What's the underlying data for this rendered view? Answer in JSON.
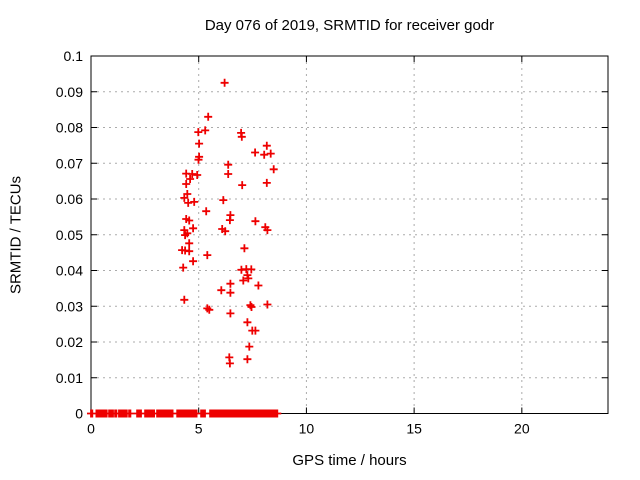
{
  "chart_data": {
    "type": "scatter",
    "title": "Day 076 of 2019, SRMTID for receiver godr",
    "xlabel": "GPS time / hours",
    "ylabel": "SRMTID / TECUs",
    "xlim": [
      0,
      24
    ],
    "ylim": [
      0,
      0.1
    ],
    "xticks": [
      0,
      5,
      10,
      15,
      20
    ],
    "xtick_labels": [
      "0",
      "5",
      "10",
      "15",
      "20"
    ],
    "yticks": [
      0,
      0.01,
      0.02,
      0.03,
      0.04,
      0.05,
      0.06,
      0.07,
      0.08,
      0.09,
      0.1
    ],
    "ytick_labels": [
      "0",
      "0.01",
      "0.02",
      "0.03",
      "0.04",
      "0.05",
      "0.06",
      "0.07",
      "0.08",
      "0.09",
      "0.1"
    ],
    "grid": true,
    "legend": false,
    "marker": {
      "shape": "plus-marker",
      "color": "#ee0000",
      "size": 4,
      "stroke": 1.8
    },
    "colors": {
      "axis": "#000000",
      "grid": "#ababab",
      "background": "#ffffff",
      "text": "#000000"
    },
    "series": [
      {
        "name": "SRMTID",
        "points": [
          [
            6.2,
            0.0925
          ],
          [
            5.44,
            0.083
          ],
          [
            5.3,
            0.0792
          ],
          [
            4.98,
            0.0787
          ],
          [
            6.97,
            0.0785
          ],
          [
            7.0,
            0.0774
          ],
          [
            5.02,
            0.0755
          ],
          [
            8.16,
            0.0749
          ],
          [
            7.62,
            0.073
          ],
          [
            8.04,
            0.0724
          ],
          [
            8.34,
            0.0727
          ],
          [
            5.02,
            0.0718
          ],
          [
            4.99,
            0.071
          ],
          [
            6.37,
            0.0696
          ],
          [
            8.48,
            0.0683
          ],
          [
            6.37,
            0.067
          ],
          [
            4.42,
            0.0671
          ],
          [
            4.7,
            0.067
          ],
          [
            4.93,
            0.0667
          ],
          [
            4.6,
            0.0656
          ],
          [
            4.42,
            0.0642
          ],
          [
            8.16,
            0.0645
          ],
          [
            7.02,
            0.0639
          ],
          [
            4.47,
            0.0614
          ],
          [
            4.33,
            0.0603
          ],
          [
            6.14,
            0.0597
          ],
          [
            4.79,
            0.0592
          ],
          [
            4.51,
            0.0589
          ],
          [
            5.35,
            0.0566
          ],
          [
            6.47,
            0.0555
          ],
          [
            6.45,
            0.0541
          ],
          [
            4.42,
            0.0544
          ],
          [
            4.56,
            0.054
          ],
          [
            7.63,
            0.0538
          ],
          [
            8.09,
            0.0521
          ],
          [
            4.74,
            0.0518
          ],
          [
            8.19,
            0.0513
          ],
          [
            4.33,
            0.0513
          ],
          [
            6.09,
            0.0516
          ],
          [
            6.23,
            0.051
          ],
          [
            4.47,
            0.0504
          ],
          [
            4.37,
            0.0499
          ],
          [
            4.56,
            0.0476
          ],
          [
            7.12,
            0.0462
          ],
          [
            4.23,
            0.0457
          ],
          [
            4.37,
            0.0456
          ],
          [
            4.56,
            0.0454
          ],
          [
            5.4,
            0.0443
          ],
          [
            4.74,
            0.0426
          ],
          [
            4.28,
            0.0408
          ],
          [
            6.98,
            0.0402
          ],
          [
            7.21,
            0.0404
          ],
          [
            7.44,
            0.0403
          ],
          [
            7.26,
            0.0387
          ],
          [
            7.3,
            0.0378
          ],
          [
            7.07,
            0.0372
          ],
          [
            6.47,
            0.0363
          ],
          [
            7.77,
            0.0358
          ],
          [
            6.05,
            0.0345
          ],
          [
            6.47,
            0.0338
          ],
          [
            4.33,
            0.0318
          ],
          [
            8.19,
            0.0305
          ],
          [
            7.4,
            0.0303
          ],
          [
            7.45,
            0.0298
          ],
          [
            5.4,
            0.0294
          ],
          [
            5.49,
            0.029
          ],
          [
            6.47,
            0.028
          ],
          [
            7.26,
            0.0255
          ],
          [
            7.49,
            0.0232
          ],
          [
            7.63,
            0.0232
          ],
          [
            7.35,
            0.0187
          ],
          [
            6.42,
            0.0157
          ],
          [
            6.45,
            0.014
          ],
          [
            7.26,
            0.0152
          ]
        ]
      }
    ],
    "baseline": {
      "y": 0,
      "marker_step": 0.06,
      "segments": [
        [
          0.0,
          0.06
        ],
        [
          0.25,
          0.75
        ],
        [
          0.84,
          1.02
        ],
        [
          1.12,
          1.21
        ],
        [
          1.3,
          1.67
        ],
        [
          1.77,
          1.86
        ],
        [
          2.14,
          2.32
        ],
        [
          2.51,
          2.97
        ],
        [
          3.07,
          3.81
        ],
        [
          4.0,
          4.93
        ],
        [
          5.11,
          5.34
        ],
        [
          5.53,
          8.69
        ]
      ]
    }
  }
}
